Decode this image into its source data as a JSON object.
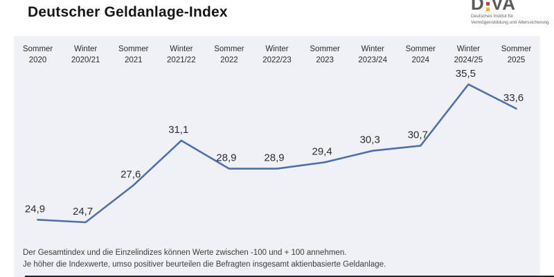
{
  "header": {
    "title": "Deutscher Geldanlage-Index",
    "logo": {
      "wordmark_left": "D",
      "wordmark_right": "VA",
      "subtitle_line1": "Deutsches Institut für",
      "subtitle_line2": "Vermögensbildung und Alterssicherung",
      "dot_top_color": "#e5332a",
      "dot_bottom_color": "#ffb81c",
      "wordmark_color": "#58595b"
    }
  },
  "chart_data": {
    "type": "line",
    "title": "Deutscher Geldanlage-Index",
    "categories": [
      "Sommer 2020",
      "Winter 2020/21",
      "Sommer 2021",
      "Winter 2021/22",
      "Sommer 2022",
      "Winter 2022/23",
      "Sommer 2023",
      "Winter 2023/24",
      "Sommer 2024",
      "Winter 2024/25",
      "Sommer 2025"
    ],
    "category_lines": [
      {
        "line1": "Sommer",
        "line2": "2020"
      },
      {
        "line1": "Winter",
        "line2": "2020/21"
      },
      {
        "line1": "Sommer",
        "line2": "2021"
      },
      {
        "line1": "Winter",
        "line2": "2021/22"
      },
      {
        "line1": "Sommer",
        "line2": "2022"
      },
      {
        "line1": "Winter",
        "line2": "2022/23"
      },
      {
        "line1": "Sommer",
        "line2": "2023"
      },
      {
        "line1": "Winter",
        "line2": "2023/24"
      },
      {
        "line1": "Sommer",
        "line2": "2024"
      },
      {
        "line1": "Winter",
        "line2": "2024/25"
      },
      {
        "line1": "Sommer",
        "line2": "2025"
      }
    ],
    "values": [
      24.9,
      24.7,
      27.6,
      31.1,
      28.9,
      28.9,
      29.4,
      30.3,
      30.7,
      35.5,
      33.6
    ],
    "value_labels": [
      "24,9",
      "24,7",
      "27,6",
      "31,1",
      "28,9",
      "28,9",
      "29,4",
      "30,3",
      "30,7",
      "35,5",
      "33,6"
    ],
    "index_range": [
      -100,
      100
    ],
    "ylim_visible": [
      20,
      38
    ],
    "grid": false,
    "legend": null,
    "line_color": "#4b70af",
    "panel_background": "#eff1f7",
    "value_label_color": "#2b2b2b"
  },
  "footnote": {
    "line1": "Der Gesamtindex und die Einzelindizes können Werte zwischen -100 und + 100 annehmen.",
    "line2": "Je höher die Indexwerte, umso positiver beurteilen die Befragten insgesamt aktienbasierte Geldanlage."
  }
}
